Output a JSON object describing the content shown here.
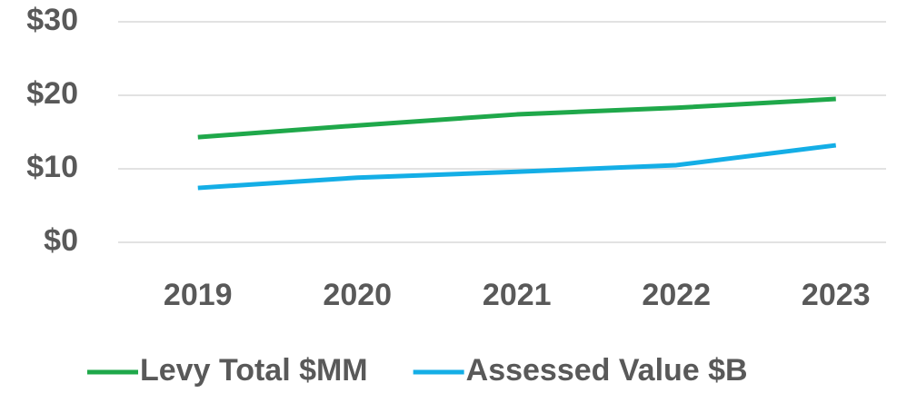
{
  "chart_data": {
    "type": "line",
    "categories": [
      "2019",
      "2020",
      "2021",
      "2022",
      "2023"
    ],
    "series": [
      {
        "name": "Levy Total $MM",
        "color": "#1fa84a",
        "values": [
          14.3,
          15.9,
          17.4,
          18.3,
          19.5
        ]
      },
      {
        "name": "Assessed Value $B",
        "color": "#14aee6",
        "values": [
          7.4,
          8.8,
          9.6,
          10.5,
          13.2
        ]
      }
    ],
    "ylim": [
      0,
      30
    ],
    "yticks": [
      {
        "value": 0,
        "label": "$0"
      },
      {
        "value": 10,
        "label": "$10"
      },
      {
        "value": 20,
        "label": "$20"
      },
      {
        "value": 30,
        "label": "$30"
      }
    ],
    "grid": true,
    "legend": "bottom"
  }
}
